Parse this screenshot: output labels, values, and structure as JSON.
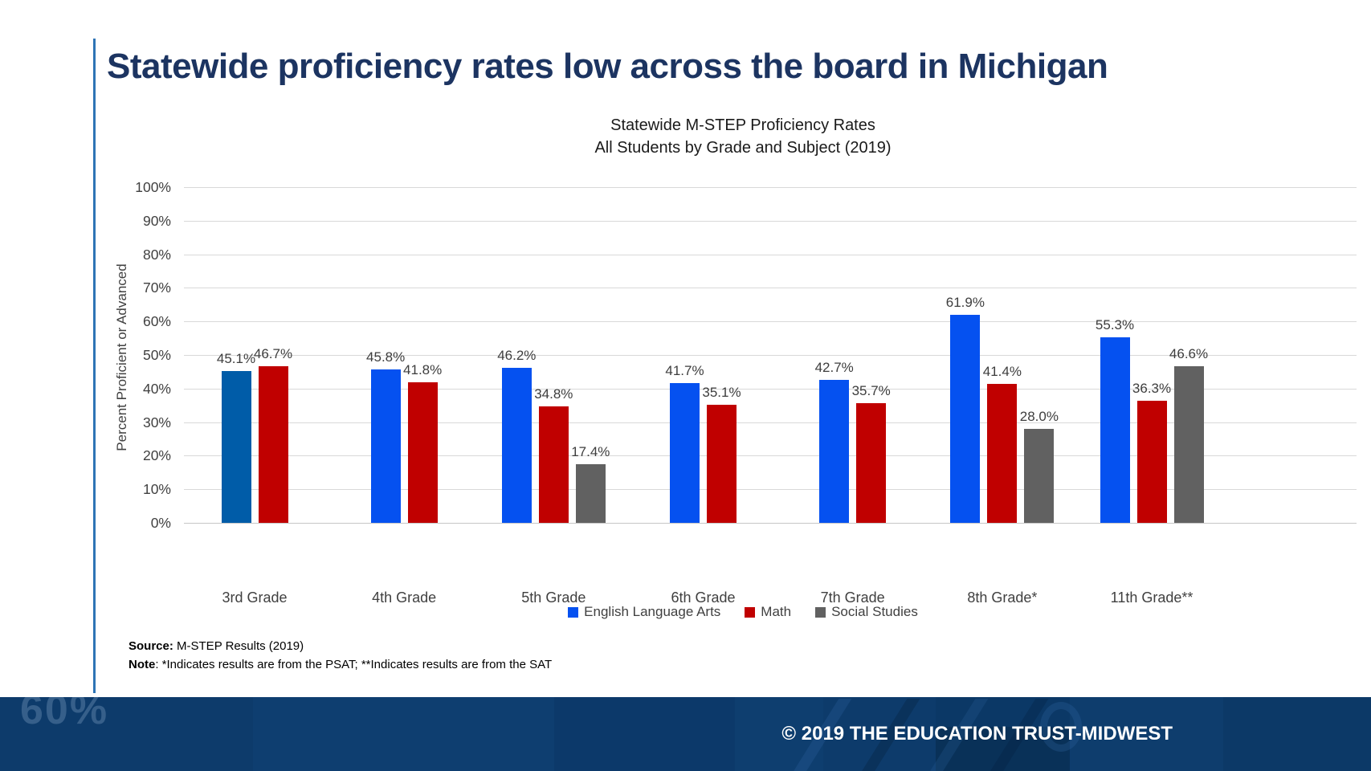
{
  "slide": {
    "title": "Statewide proficiency rates low across the board in Michigan",
    "source_label": "Source:",
    "source_text": " M-STEP Results (2019)",
    "note_label": "Note",
    "note_text": ": *Indicates results are from the PSAT; **Indicates results are from the SAT",
    "footer": {
      "watermark": "60%",
      "copyright": "© 2019 THE EDUCATION TRUST-MIDWEST"
    }
  },
  "colors": {
    "title_navy": "#1C3461",
    "accent_line_blue": "#2E74B5",
    "footer_band_navy": "#0D3B6B",
    "ela_blue": "#0551F0",
    "ela_3rd_grade_blue": "#005CA8",
    "math_red": "#C00000",
    "social_studies_gray": "#616161"
  },
  "chart_data": {
    "type": "bar",
    "title": "Statewide M-STEP Proficiency Rates",
    "subtitle": "All Students by Grade and Subject (2019)",
    "ylabel": "Percent Proficient or Advanced",
    "ylim": [
      0,
      100
    ],
    "ytick_step": 10,
    "ytick_suffix": "%",
    "grid": true,
    "legend_position": "bottom",
    "data_labels": true,
    "categories": [
      "3rd Grade",
      "4th Grade",
      "5th Grade",
      "6th Grade",
      "7th Grade",
      "8th Grade*",
      "11th Grade**"
    ],
    "series": [
      {
        "name": "English Language Arts",
        "color": "#0551F0",
        "values": [
          45.1,
          45.8,
          46.2,
          41.7,
          42.7,
          61.9,
          55.3
        ]
      },
      {
        "name": "Math",
        "color": "#C00000",
        "values": [
          46.7,
          41.8,
          34.8,
          35.1,
          35.7,
          41.4,
          36.3
        ]
      },
      {
        "name": "Social Studies",
        "color": "#616161",
        "values": [
          null,
          null,
          17.4,
          null,
          null,
          28.0,
          46.6
        ]
      }
    ],
    "bar_color_overrides": [
      {
        "series": 0,
        "category": 0,
        "color": "#005CA8"
      }
    ]
  }
}
